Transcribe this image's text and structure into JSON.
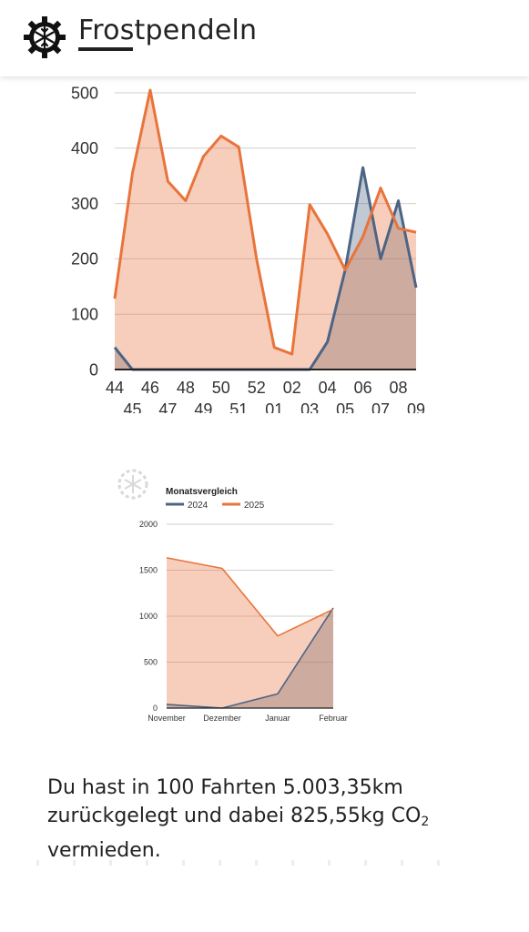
{
  "header": {
    "title": "Frostpendeln",
    "logo_icon": "snowflake-gear-icon"
  },
  "weekly_chart": {
    "chart_data": {
      "type": "area",
      "x": [
        "44",
        "45",
        "46",
        "47",
        "48",
        "49",
        "50",
        "51",
        "52",
        "01",
        "02",
        "03",
        "04",
        "05",
        "06",
        "07",
        "08",
        "09"
      ],
      "series": [
        {
          "name": "2024",
          "color": "#4d6485",
          "values": [
            40,
            0,
            0,
            0,
            0,
            0,
            0,
            0,
            0,
            0,
            0,
            0,
            50,
            180,
            365,
            200,
            305,
            148
          ]
        },
        {
          "name": "2025",
          "color": "#e8743b",
          "values": [
            128,
            355,
            505,
            340,
            305,
            385,
            422,
            402,
            200,
            40,
            28,
            298,
            245,
            180,
            240,
            328,
            255,
            248
          ]
        }
      ],
      "ylim": [
        0,
        500
      ],
      "yticks": [
        "0",
        "100",
        "200",
        "300",
        "400",
        "500"
      ],
      "grid": true
    }
  },
  "monthly_chart": {
    "chart_data": {
      "type": "area",
      "title": "Monatsvergleich",
      "categories": [
        "November",
        "Dezember",
        "Januar",
        "Februar"
      ],
      "series": [
        {
          "name": "2024",
          "color": "#4d6485",
          "values": [
            40,
            0,
            155,
            1090
          ]
        },
        {
          "name": "2025",
          "color": "#e8743b",
          "values": [
            1635,
            1520,
            785,
            1075
          ]
        }
      ],
      "ylim": [
        0,
        2000
      ],
      "yticks": [
        "0",
        "500",
        "1000",
        "1500",
        "2000"
      ],
      "legend": "top-left",
      "grid": true
    },
    "watermark_icon": "snowflake-gear-icon"
  },
  "summary": {
    "line1": "Du hast in 100 Fahrten 5.003,35km",
    "line2": "zurückgelegt und dabei 825,55kg CO",
    "sub": "2",
    "line3": "vermieden."
  }
}
